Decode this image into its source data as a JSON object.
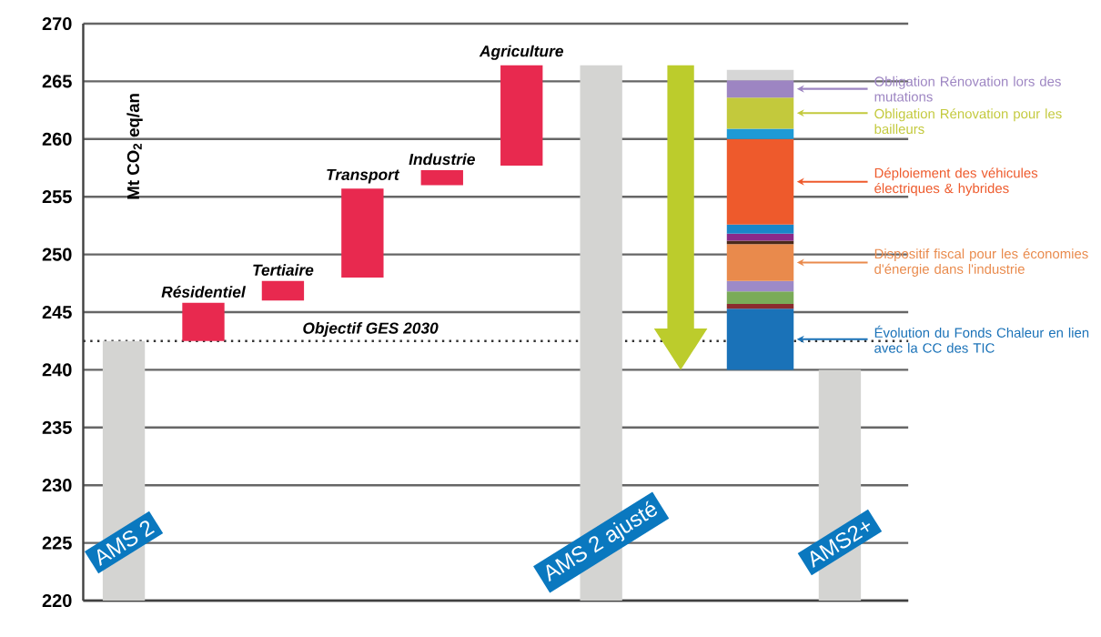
{
  "chart_data": {
    "type": "bar",
    "ylabel": "Mt CO$_{2}$ eq/an",
    "categories": [
      "AMS 2",
      "Résidentiel",
      "Tertiaire",
      "Transport",
      "Industrie",
      "Agriculture",
      "AMS 2 ajusté",
      null,
      null,
      "AMS2+"
    ],
    "series": [
      {
        "colors": [
          "#d4d4d2",
          "#e8294f",
          "#e8294f",
          "#e8294f",
          "#e8294f",
          "#e8294f",
          "#d4d4d2",
          "#d4d4d2",
          "#d4d4d2",
          "#d4d4d2"
        ],
        "base": [
          220,
          242.5,
          246.0,
          248.0,
          256.0,
          257.7,
          220,
          null,
          null,
          220
        ],
        "values": [
          22.5,
          3.3,
          1.7,
          7.7,
          1.3,
          8.7,
          46.4,
          null,
          null,
          20
        ]
      },
      {
        "name": "Évolution du Fonds Chaleur en lien avec la CC des TIC",
        "color": "#1a72b8",
        "base": [
          null,
          null,
          null,
          null,
          null,
          null,
          null,
          null,
          240,
          null
        ],
        "values": [
          null,
          null,
          null,
          null,
          null,
          null,
          null,
          null,
          5.3,
          null
        ]
      },
      {
        "color": "#8b2b2e",
        "base": [
          null,
          null,
          null,
          null,
          null,
          null,
          null,
          null,
          245.3,
          null
        ],
        "values": [
          null,
          null,
          null,
          null,
          null,
          null,
          null,
          null,
          0.4,
          null
        ]
      },
      {
        "color": "#7aab58",
        "base": [
          null,
          null,
          null,
          null,
          null,
          null,
          null,
          null,
          245.7,
          null
        ],
        "values": [
          null,
          null,
          null,
          null,
          null,
          null,
          null,
          null,
          1.1,
          null
        ]
      },
      {
        "color": "#9d8ac8",
        "base": [
          null,
          null,
          null,
          null,
          null,
          null,
          null,
          null,
          246.8,
          null
        ],
        "values": [
          null,
          null,
          null,
          null,
          null,
          null,
          null,
          null,
          0.9,
          null
        ]
      },
      {
        "name": "Dispositif fiscal pour les économies d'énergie dans l'industrie",
        "color": "#e98a4c",
        "base": [
          null,
          null,
          null,
          null,
          null,
          null,
          null,
          null,
          247.7,
          null
        ],
        "values": [
          null,
          null,
          null,
          null,
          null,
          null,
          null,
          null,
          3.2,
          null
        ]
      },
      {
        "color": "#4a2a1a",
        "base": [
          null,
          null,
          null,
          null,
          null,
          null,
          null,
          null,
          250.9,
          null
        ],
        "values": [
          null,
          null,
          null,
          null,
          null,
          null,
          null,
          null,
          0.3,
          null
        ]
      },
      {
        "color": "#8a2a8a",
        "base": [
          null,
          null,
          null,
          null,
          null,
          null,
          null,
          null,
          251.2,
          null
        ],
        "values": [
          null,
          null,
          null,
          null,
          null,
          null,
          null,
          null,
          0.6,
          null
        ]
      },
      {
        "color": "#1a86c8",
        "base": [
          null,
          null,
          null,
          null,
          null,
          null,
          null,
          null,
          251.8,
          null
        ],
        "values": [
          null,
          null,
          null,
          null,
          null,
          null,
          null,
          null,
          0.8,
          null
        ]
      },
      {
        "name": "Déploiement des véhicules électriques & hybrides",
        "color": "#ee5a2c",
        "base": [
          null,
          null,
          null,
          null,
          null,
          null,
          null,
          null,
          252.6,
          null
        ],
        "values": [
          null,
          null,
          null,
          null,
          null,
          null,
          null,
          null,
          7.4,
          null
        ]
      },
      {
        "color": "#1e9ad6",
        "base": [
          null,
          null,
          null,
          null,
          null,
          null,
          null,
          null,
          260.0,
          null
        ],
        "values": [
          null,
          null,
          null,
          null,
          null,
          null,
          null,
          null,
          0.9,
          null
        ]
      },
      {
        "name": "Obligation Rénovation pour les bailleurs",
        "color": "#c3c93c",
        "base": [
          null,
          null,
          null,
          null,
          null,
          null,
          null,
          null,
          260.9,
          null
        ],
        "values": [
          null,
          null,
          null,
          null,
          null,
          null,
          null,
          null,
          2.7,
          null
        ]
      },
      {
        "name": "Obligation Rénovation lors des mutations",
        "color": "#9d85c2",
        "base": [
          null,
          null,
          null,
          null,
          null,
          null,
          null,
          null,
          263.6,
          null
        ],
        "values": [
          null,
          null,
          null,
          null,
          null,
          null,
          null,
          null,
          1.5,
          null
        ]
      },
      {
        "color": "#d6d6d6",
        "base": [
          null,
          null,
          null,
          null,
          null,
          null,
          null,
          null,
          265.1,
          null
        ],
        "values": [
          null,
          null,
          null,
          null,
          null,
          null,
          null,
          null,
          0.9,
          null
        ]
      }
    ],
    "ylim": [
      220,
      270
    ],
    "yticks": [
      220,
      225,
      230,
      235,
      240,
      245,
      250,
      255,
      260,
      265,
      270
    ],
    "grid": "y",
    "legend": "right",
    "ref_lines": [
      {
        "axis": "y",
        "value": 242.5,
        "label": "Objectif GES 2030",
        "line_style": "dotted",
        "color": "#333333"
      }
    ]
  }
}
